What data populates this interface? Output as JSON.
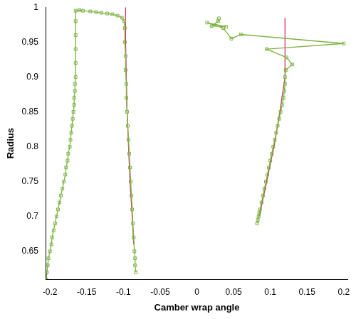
{
  "chart_data": {
    "type": "scatter",
    "x_label": "Camber wrap angle",
    "y_label": "Radius",
    "xlim": [
      -0.205,
      0.205
    ],
    "ylim": [
      0.61,
      1
    ],
    "xticks": [
      -0.2,
      -0.15,
      -0.1,
      -0.05,
      0,
      0.05,
      0.1,
      0.15,
      0.2
    ],
    "yticks": [
      0.65,
      0.7,
      0.75,
      0.8,
      0.85,
      0.9,
      0.95,
      1
    ],
    "grid": false,
    "series": [
      {
        "color": "#7cb342",
        "marker": "square",
        "line_style": "solid",
        "x": [
          -0.205,
          -0.204,
          -0.203,
          -0.202,
          -0.2,
          -0.198,
          -0.197,
          -0.195,
          -0.193,
          -0.191,
          -0.189,
          -0.187,
          -0.185,
          -0.183,
          -0.181,
          -0.179,
          -0.178,
          -0.176,
          -0.175,
          -0.173,
          -0.172,
          -0.171,
          -0.17,
          -0.169,
          -0.168,
          -0.167,
          -0.167,
          -0.166,
          -0.166,
          -0.165,
          -0.165,
          -0.165,
          -0.165,
          -0.165,
          -0.165,
          -0.16,
          -0.155,
          -0.145,
          -0.137,
          -0.13,
          -0.122,
          -0.115,
          -0.108,
          -0.102,
          -0.099,
          -0.098,
          -0.098,
          -0.097,
          -0.097,
          -0.096,
          -0.096,
          -0.095,
          -0.094,
          -0.093,
          -0.092,
          -0.091,
          -0.09,
          -0.089,
          -0.088,
          -0.087,
          -0.086,
          -0.085,
          -0.084,
          -0.084,
          -0.083
        ],
        "values": [
          0.61,
          0.62,
          0.63,
          0.64,
          0.65,
          0.66,
          0.67,
          0.68,
          0.69,
          0.7,
          0.71,
          0.72,
          0.73,
          0.74,
          0.75,
          0.76,
          0.77,
          0.78,
          0.79,
          0.8,
          0.81,
          0.82,
          0.83,
          0.84,
          0.85,
          0.86,
          0.87,
          0.88,
          0.89,
          0.9,
          0.92,
          0.94,
          0.96,
          0.98,
          0.995,
          0.996,
          0.995,
          0.994,
          0.993,
          0.992,
          0.991,
          0.99,
          0.988,
          0.985,
          0.98,
          0.97,
          0.95,
          0.93,
          0.91,
          0.89,
          0.87,
          0.85,
          0.83,
          0.81,
          0.79,
          0.77,
          0.75,
          0.73,
          0.71,
          0.69,
          0.67,
          0.65,
          0.64,
          0.63,
          0.62
        ]
      },
      {
        "color": "#d6336c",
        "marker": "none",
        "line_style": "solid",
        "x": [
          -0.097,
          -0.097,
          -0.096,
          -0.095,
          -0.093,
          -0.091,
          -0.088,
          -0.086
        ],
        "values": [
          1,
          0.95,
          0.9,
          0.85,
          0.8,
          0.75,
          0.7,
          0.66
        ]
      },
      {
        "color": "#7cb342",
        "marker": "square",
        "line_style": "solid",
        "x": [
          0.082,
          0.083,
          0.084,
          0.085,
          0.086,
          0.088,
          0.09,
          0.092,
          0.094,
          0.096,
          0.098,
          0.1,
          0.102,
          0.104,
          0.106,
          0.108,
          0.11,
          0.112,
          0.114,
          0.116,
          0.118,
          0.119,
          0.12,
          0.12,
          0.121,
          0.13,
          0.122,
          0.095,
          0.2,
          0.06,
          0.047,
          0.036,
          0.014,
          0.04,
          0.02,
          0.029,
          0.03
        ],
        "values": [
          0.69,
          0.695,
          0.7,
          0.705,
          0.71,
          0.72,
          0.73,
          0.74,
          0.75,
          0.76,
          0.77,
          0.78,
          0.79,
          0.8,
          0.81,
          0.82,
          0.83,
          0.84,
          0.85,
          0.86,
          0.87,
          0.88,
          0.89,
          0.9,
          0.91,
          0.918,
          0.928,
          0.94,
          0.948,
          0.961,
          0.955,
          0.97,
          0.978,
          0.972,
          0.973,
          0.98,
          0.984
        ]
      },
      {
        "color": "#d6336c",
        "marker": "none",
        "line_style": "solid",
        "x": [
          0.085,
          0.095,
          0.105,
          0.113,
          0.12,
          0.12,
          0.12
        ],
        "values": [
          0.7,
          0.75,
          0.8,
          0.85,
          0.9,
          0.95,
          0.985
        ]
      }
    ]
  }
}
